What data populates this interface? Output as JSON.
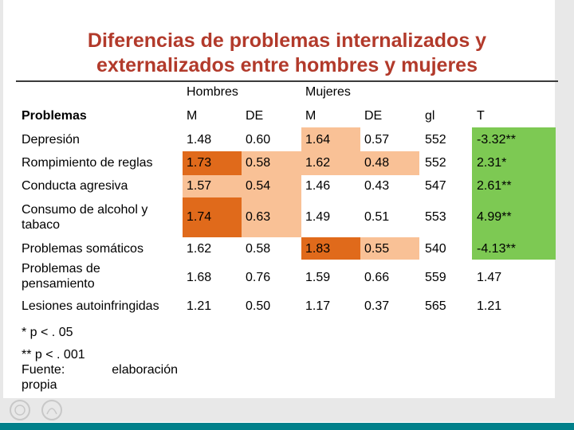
{
  "title": {
    "line1": "Diferencias de problemas internalizados y",
    "line2": "externalizados entre hombres y mujeres"
  },
  "table": {
    "group_headers": {
      "hombres": "Hombres",
      "mujeres": "Mujeres"
    },
    "columns": [
      "Problemas",
      "M",
      "DE",
      "M",
      "DE",
      "gl",
      "T"
    ],
    "rows": [
      {
        "label": "Depresión",
        "values": [
          "1.48",
          "0.60",
          "1.64",
          "0.57",
          "552",
          "-3.32**"
        ]
      },
      {
        "label": "Rompimiento de reglas",
        "values": [
          "1.73",
          "0.58",
          "1.62",
          "0.48",
          "552",
          "2.31*"
        ]
      },
      {
        "label": "Conducta agresiva",
        "values": [
          "1.57",
          "0.54",
          "1.46",
          "0.43",
          "547",
          "2.61**"
        ]
      },
      {
        "label": "Consumo de alcohol y tabaco",
        "values": [
          "1.74",
          "0.63",
          "1.49",
          "0.51",
          "553",
          "4.99**"
        ]
      },
      {
        "label": "Problemas somáticos",
        "values": [
          "1.62",
          "0.58",
          "1.83",
          "0.55",
          "540",
          "-4.13**"
        ]
      },
      {
        "label": "Problemas de pensamiento",
        "values": [
          "1.68",
          "0.76",
          "1.59",
          "0.66",
          "559",
          "1.47"
        ]
      },
      {
        "label": "Lesiones autoinfringidas",
        "values": [
          "1.21",
          "0.50",
          "1.17",
          "0.37",
          "565",
          "1.21"
        ]
      }
    ]
  },
  "notes": {
    "sig1": "* p < . 05",
    "sig2": "** p < . 001",
    "fuente_label": "Fuente:",
    "fuente_value": "elaboración",
    "fuente_value2": "propia"
  },
  "colors": {
    "title": "#b23a2b",
    "highlight_dark": "#e06a1b",
    "highlight_light": "#f9c196",
    "highlight_green": "#7dc953",
    "footer_bar": "#00808a"
  }
}
